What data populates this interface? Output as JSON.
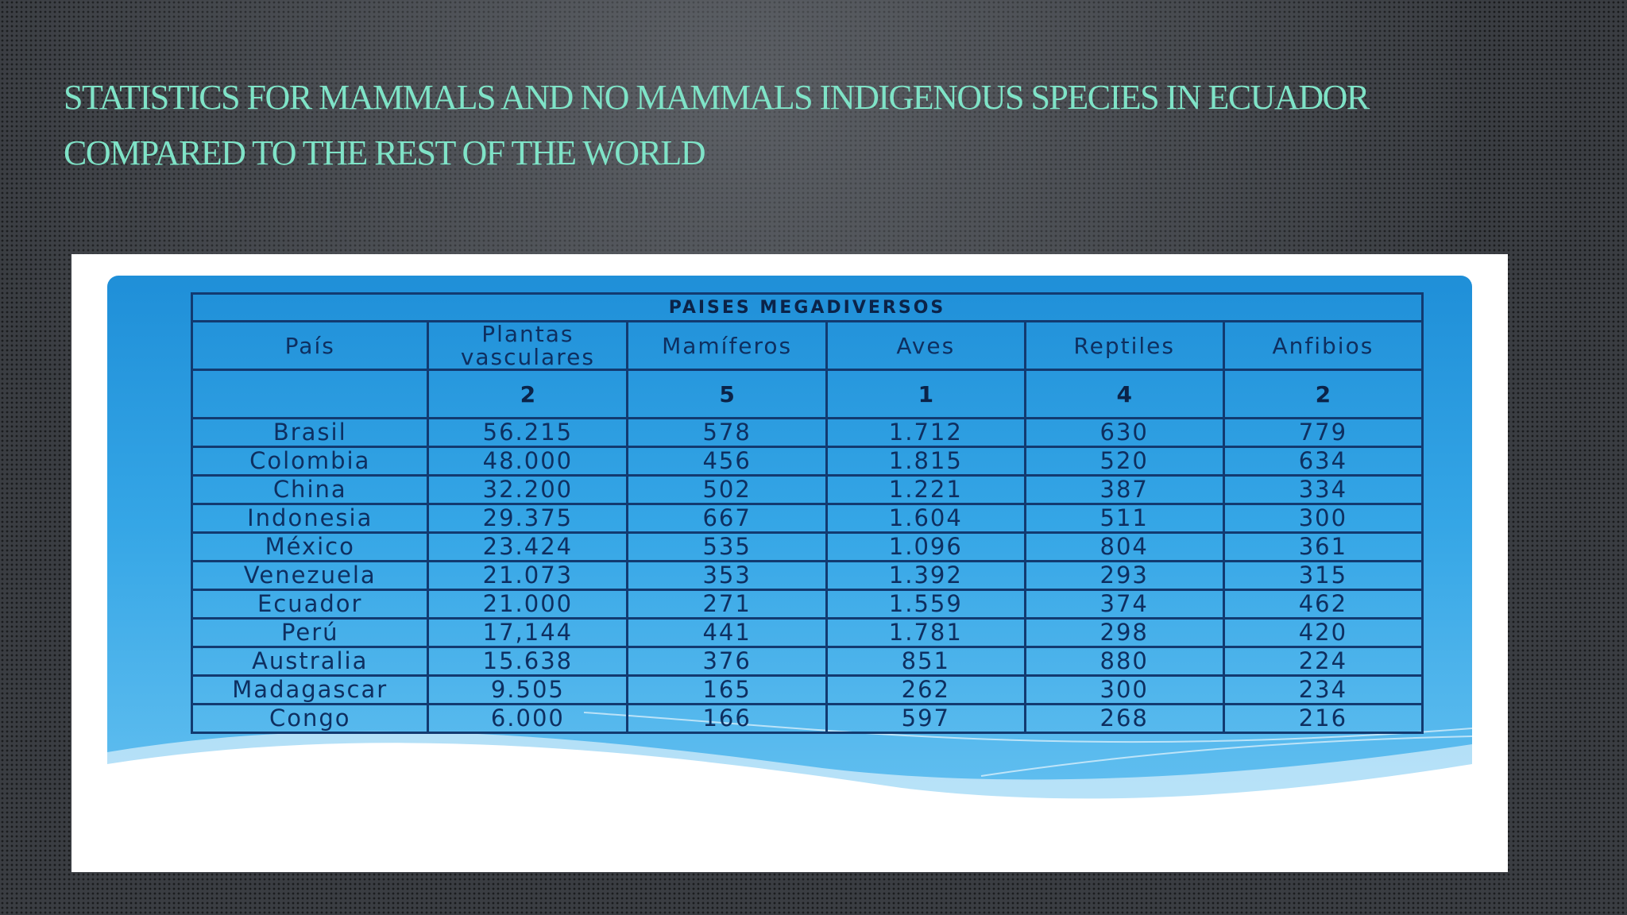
{
  "slide": {
    "title_line1": "Statistics for mammals and no mammals indigenous species in Ecuador",
    "title_line2": "compared to the rest of the world"
  },
  "table": {
    "caption": "PAISES MEGADIVERSOS",
    "headers": [
      "País",
      "Plantas vasculares",
      "Mamíferos",
      "Aves",
      "Reptiles",
      "Anfibios"
    ],
    "ranks": [
      "",
      "2",
      "5",
      "1",
      "4",
      "2"
    ],
    "rows": [
      [
        "Brasil",
        "56.215",
        "578",
        "1.712",
        "630",
        "779"
      ],
      [
        "Colombia",
        "48.000",
        "456",
        "1.815",
        "520",
        "634"
      ],
      [
        "China",
        "32.200",
        "502",
        "1.221",
        "387",
        "334"
      ],
      [
        "Indonesia",
        "29.375",
        "667",
        "1.604",
        "511",
        "300"
      ],
      [
        "México",
        "23.424",
        "535",
        "1.096",
        "804",
        "361"
      ],
      [
        "Venezuela",
        "21.073",
        "353",
        "1.392",
        "293",
        "315"
      ],
      [
        "Ecuador",
        "21.000",
        "271",
        "1.559",
        "374",
        "462"
      ],
      [
        "Perú",
        "17,144",
        "441",
        "1.781",
        "298",
        "420"
      ],
      [
        "Australia",
        "15.638",
        "376",
        "851",
        "880",
        "224"
      ],
      [
        "Madagascar",
        "9.505",
        "165",
        "262",
        "300",
        "234"
      ],
      [
        "Congo",
        "6.000",
        "166",
        "597",
        "268",
        "216"
      ]
    ]
  },
  "colors": {
    "title": "#7fe3c7",
    "background": "#3a3d42",
    "card_blue": "#2a9be0",
    "table_border": "#123a70"
  }
}
